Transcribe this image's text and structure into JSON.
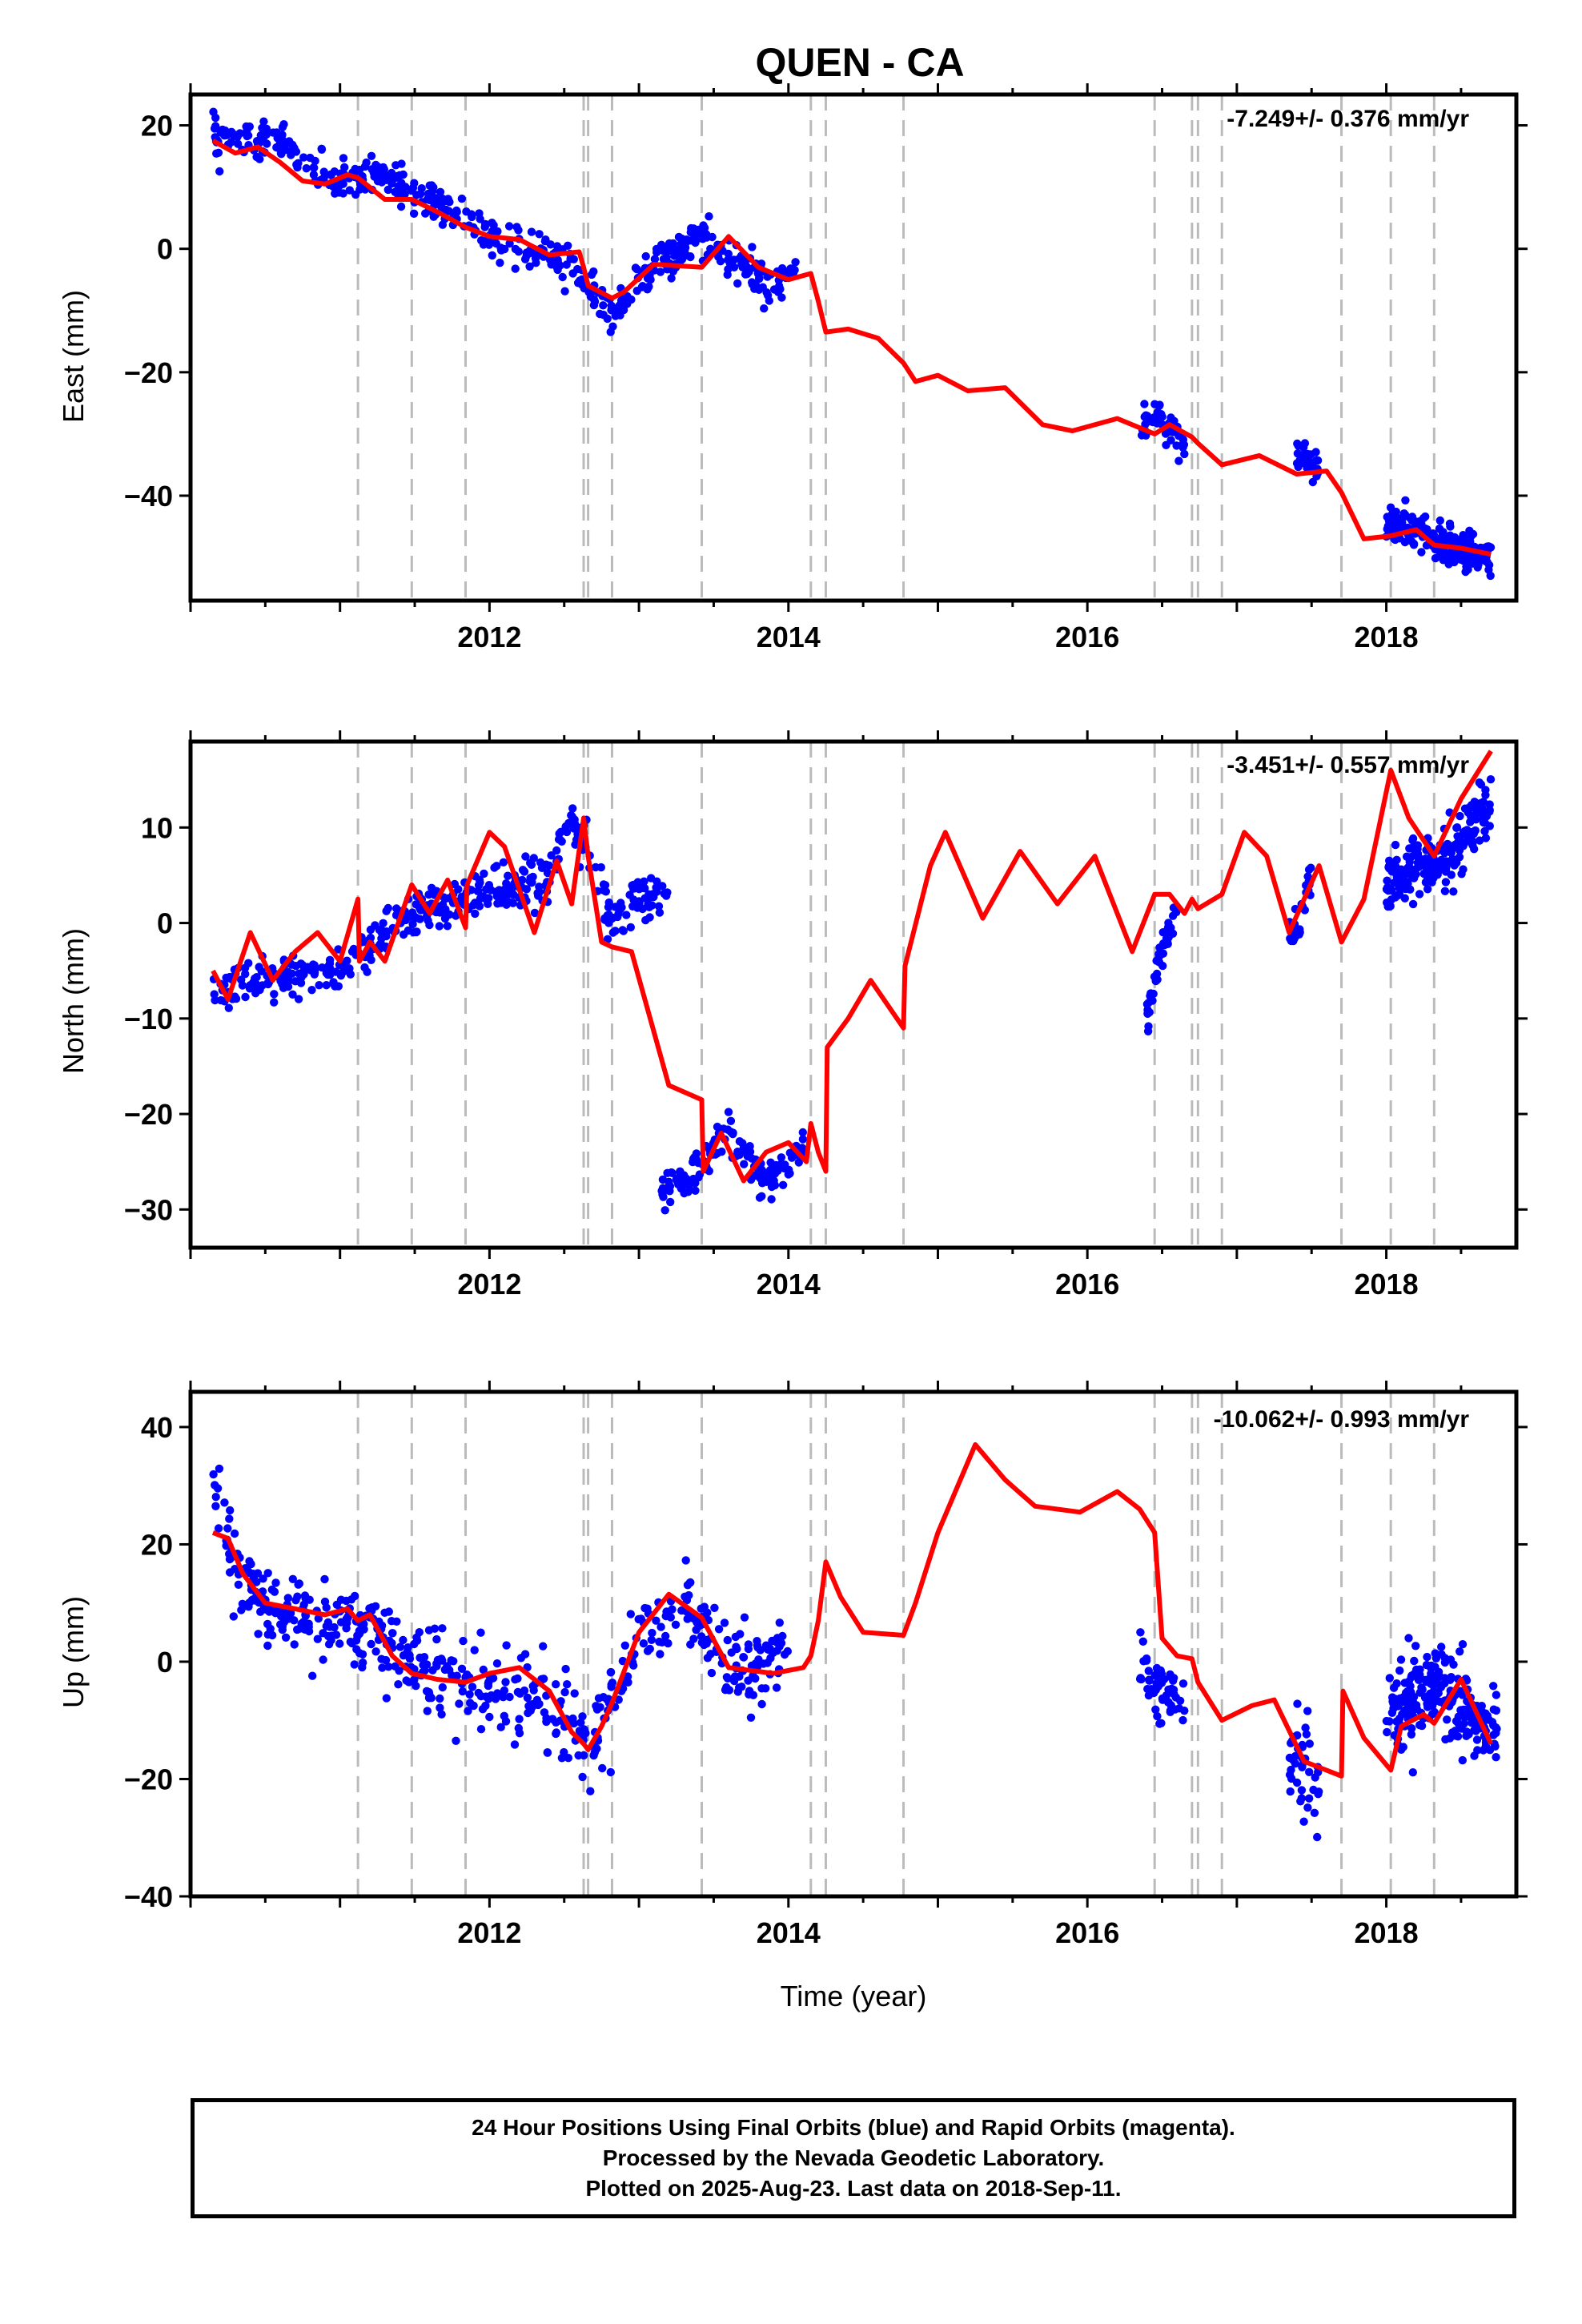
{
  "page": {
    "title": "QUEN - CA"
  },
  "footer": {
    "lines": [
      "24 Hour Positions Using Final Orbits (blue) and Rapid Orbits (magenta).",
      "Processed by the Nevada Geodetic Laboratory.",
      "Plotted on 2025-Aug-23. Last data on 2018-Sep-11."
    ]
  },
  "colors": {
    "data": "#0000ff",
    "model": "#ff0000",
    "events": "#bbbbbb",
    "frame": "#000000"
  },
  "chart_data": [
    {
      "type": "scatter",
      "title": "QUEN - CA",
      "xlabel": "",
      "ylabel": "East (mm)",
      "rate": "-7.249+/- 0.376 mm/yr",
      "xlim": [
        2010.0,
        2018.87
      ],
      "ylim": [
        -57,
        25
      ],
      "xticks": [
        2012,
        2014,
        2016,
        2018
      ],
      "yticks": [
        20,
        0,
        -20,
        -40
      ],
      "ytick_labels": [
        "20",
        "0",
        "−20",
        "−40"
      ],
      "event_lines": [
        2011.12,
        2011.48,
        2011.84,
        2012.63,
        2012.66,
        2012.82,
        2013.42,
        2014.15,
        2014.25,
        2014.77,
        2016.45,
        2016.7,
        2016.74,
        2016.9,
        2017.7,
        2018.03,
        2018.32
      ],
      "data_segments": [
        {
          "x": [
            2010.15,
            2010.6,
            2011.0,
            2011.3,
            2011.6,
            2012.0,
            2012.4,
            2012.62,
            2012.82,
            2013.1,
            2013.4,
            2013.6,
            2013.85,
            2014.05
          ],
          "y": [
            18,
            17,
            10.5,
            12,
            8,
            2,
            -1,
            -4,
            -11,
            -3,
            2,
            -1,
            -6,
            -3
          ],
          "spread": 2.8,
          "n": 520
        },
        {
          "x": [
            2016.35,
            2016.5,
            2016.65
          ],
          "y": [
            -30,
            -27,
            -32
          ],
          "spread": 2.5,
          "n": 50
        },
        {
          "x": [
            2017.4,
            2017.55
          ],
          "y": [
            -33,
            -36
          ],
          "spread": 2.0,
          "n": 35
        },
        {
          "x": [
            2018.0,
            2018.2,
            2018.4,
            2018.7
          ],
          "y": [
            -44,
            -46,
            -48,
            -50
          ],
          "spread": 2.6,
          "n": 220
        }
      ],
      "model": {
        "x": [
          2010.15,
          2010.3,
          2010.45,
          2010.6,
          2010.75,
          2010.9,
          2011.05,
          2011.12,
          2011.3,
          2011.48,
          2011.65,
          2011.84,
          2012.0,
          2012.2,
          2012.4,
          2012.6,
          2012.63,
          2012.66,
          2012.82,
          2012.9,
          2013.1,
          2013.42,
          2013.6,
          2013.8,
          2014.0,
          2014.15,
          2014.2,
          2014.25,
          2014.4,
          2014.6,
          2014.77,
          2014.85,
          2015.0,
          2015.2,
          2015.45,
          2015.7,
          2015.9,
          2016.2,
          2016.45,
          2016.55,
          2016.7,
          2016.74,
          2016.9,
          2017.15,
          2017.4,
          2017.6,
          2017.7,
          2017.85,
          2018.03,
          2018.2,
          2018.32,
          2018.5,
          2018.7
        ],
        "y": [
          17.5,
          15.5,
          16.5,
          14,
          11,
          10.5,
          12,
          11.5,
          8,
          8,
          6,
          3.5,
          2,
          1.5,
          -1,
          -0.5,
          -3,
          -6,
          -8,
          -7,
          -2.5,
          -3,
          2,
          -3,
          -5,
          -4,
          -8.5,
          -13.5,
          -13,
          -14.5,
          -18.5,
          -21.5,
          -20.5,
          -23,
          -22.5,
          -28.5,
          -29.5,
          -27.5,
          -30,
          -28.5,
          -30.5,
          -31.5,
          -35,
          -33.5,
          -36.5,
          -36,
          -39.5,
          -47,
          -46.5,
          -45.5,
          -48,
          -48.5,
          -49.5
        ]
      }
    },
    {
      "type": "scatter",
      "title": "",
      "xlabel": "",
      "ylabel": "North (mm)",
      "rate": "-3.451+/- 0.557 mm/yr",
      "xlim": [
        2010.0,
        2018.87
      ],
      "ylim": [
        -34,
        19
      ],
      "xticks": [
        2012,
        2014,
        2016,
        2018
      ],
      "yticks": [
        10,
        0,
        -10,
        -20,
        -30
      ],
      "ytick_labels": [
        "10",
        "0",
        "−10",
        "−20",
        "−30"
      ],
      "event_lines": [
        2011.12,
        2011.48,
        2011.84,
        2012.63,
        2012.66,
        2012.82,
        2013.42,
        2014.15,
        2014.25,
        2014.77,
        2016.45,
        2016.7,
        2016.74,
        2016.9,
        2017.7,
        2018.03,
        2018.32
      ],
      "data_segments": [
        {
          "x": [
            2010.15,
            2010.5,
            2011.0,
            2011.5,
            2012.0,
            2012.4,
            2012.55,
            2012.66,
            2012.82,
            2013.0,
            2013.2
          ],
          "y": [
            -7,
            -6,
            -5,
            1,
            3,
            5,
            10,
            8,
            0,
            3,
            3
          ],
          "spread": 2.2,
          "n": 430
        },
        {
          "x": [
            2013.15,
            2013.4,
            2013.6,
            2013.85,
            2014.1
          ],
          "y": [
            -28,
            -26,
            -22,
            -27,
            -24
          ],
          "spread": 1.8,
          "n": 150
        },
        {
          "x": [
            2016.4,
            2016.5,
            2016.6
          ],
          "y": [
            -9,
            -3,
            2
          ],
          "spread": 1.5,
          "n": 45
        },
        {
          "x": [
            2017.35,
            2017.5
          ],
          "y": [
            -2,
            5
          ],
          "spread": 2.0,
          "n": 30
        },
        {
          "x": [
            2018.0,
            2018.2,
            2018.4,
            2018.7
          ],
          "y": [
            4,
            6,
            7,
            12
          ],
          "spread": 2.8,
          "n": 220
        }
      ],
      "model": {
        "x": [
          2010.15,
          2010.25,
          2010.4,
          2010.55,
          2010.7,
          2010.85,
          2011.0,
          2011.12,
          2011.13,
          2011.2,
          2011.3,
          2011.48,
          2011.6,
          2011.72,
          2011.84,
          2011.85,
          2012.0,
          2012.1,
          2012.3,
          2012.45,
          2012.55,
          2012.63,
          2012.66,
          2012.75,
          2012.82,
          2012.95,
          2013.2,
          2013.42,
          2013.43,
          2013.55,
          2013.7,
          2013.85,
          2014.0,
          2014.12,
          2014.15,
          2014.2,
          2014.25,
          2014.26,
          2014.4,
          2014.55,
          2014.77,
          2014.78,
          2014.95,
          2015.05,
          2015.3,
          2015.55,
          2015.8,
          2016.05,
          2016.3,
          2016.45,
          2016.55,
          2016.65,
          2016.7,
          2016.74,
          2016.9,
          2017.05,
          2017.2,
          2017.35,
          2017.55,
          2017.7,
          2017.85,
          2018.03,
          2018.15,
          2018.32,
          2018.5,
          2018.7
        ],
        "y": [
          -5,
          -8,
          -1,
          -6,
          -3,
          -1,
          -4,
          2.5,
          -4,
          -2,
          -4,
          4,
          1,
          4.5,
          -0.5,
          4,
          9.5,
          8,
          -1,
          6.5,
          2,
          11,
          7,
          -2,
          -2.5,
          -3,
          -17,
          -18.5,
          -26,
          -22,
          -27,
          -24,
          -23,
          -25,
          -21,
          -24,
          -26,
          -13,
          -10,
          -6,
          -11,
          -4.5,
          6,
          9.5,
          0.5,
          7.5,
          2,
          7,
          -3,
          3,
          3,
          1,
          2.5,
          1.5,
          3,
          9.5,
          7,
          -1,
          6,
          -2,
          2.5,
          16,
          11,
          7,
          13,
          18
        ]
      }
    },
    {
      "type": "scatter",
      "title": "",
      "xlabel": "Time (year)",
      "ylabel": "Up (mm)",
      "rate": "-10.062+/- 0.993 mm/yr",
      "xlim": [
        2010.0,
        2018.87
      ],
      "ylim": [
        -40,
        46
      ],
      "xticks": [
        2012,
        2014,
        2016,
        2018
      ],
      "yticks": [
        40,
        20,
        0,
        -20,
        -40
      ],
      "ytick_labels": [
        "40",
        "20",
        "0",
        "−20",
        "−40"
      ],
      "event_lines": [
        2011.12,
        2011.48,
        2011.84,
        2012.63,
        2012.66,
        2012.82,
        2013.42,
        2014.15,
        2014.25,
        2014.77,
        2016.45,
        2016.7,
        2016.74,
        2016.9,
        2017.7,
        2018.03,
        2018.32
      ],
      "data_segments": [
        {
          "x": [
            2010.15,
            2010.3,
            2010.6,
            2011.0,
            2011.5,
            2012.0,
            2012.5,
            2012.7,
            2013.0,
            2013.3,
            2013.6,
            2014.0
          ],
          "y": [
            33,
            15,
            8,
            6,
            0,
            -5,
            -10,
            -14,
            5,
            10,
            -2,
            0
          ],
          "spread": 6.5,
          "n": 560
        },
        {
          "x": [
            2016.35,
            2016.45,
            2016.65
          ],
          "y": [
            3,
            -4,
            -8
          ],
          "spread": 5.5,
          "n": 60
        },
        {
          "x": [
            2017.35,
            2017.55
          ],
          "y": [
            -15,
            -20
          ],
          "spread": 7.0,
          "n": 40
        },
        {
          "x": [
            2018.0,
            2018.3,
            2018.6,
            2018.75
          ],
          "y": [
            -10,
            -3,
            -10,
            -10
          ],
          "spread": 7.0,
          "n": 230
        }
      ],
      "model": {
        "x": [
          2010.15,
          2010.25,
          2010.35,
          2010.5,
          2010.7,
          2010.9,
          2011.05,
          2011.12,
          2011.2,
          2011.35,
          2011.48,
          2011.65,
          2011.84,
          2012.0,
          2012.2,
          2012.4,
          2012.55,
          2012.63,
          2012.66,
          2012.75,
          2012.82,
          2013.0,
          2013.2,
          2013.42,
          2013.6,
          2013.9,
          2014.1,
          2014.15,
          2014.2,
          2014.25,
          2014.35,
          2014.5,
          2014.77,
          2014.85,
          2015.0,
          2015.25,
          2015.45,
          2015.65,
          2015.95,
          2016.2,
          2016.35,
          2016.45,
          2016.5,
          2016.6,
          2016.7,
          2016.74,
          2016.9,
          2017.1,
          2017.25,
          2017.45,
          2017.7,
          2017.71,
          2017.85,
          2018.03,
          2018.1,
          2018.25,
          2018.32,
          2018.5,
          2018.7
        ],
        "y": [
          22,
          21,
          15,
          10,
          9,
          8,
          9,
          7,
          8,
          1,
          -2,
          -3,
          -3.5,
          -2,
          -1,
          -5,
          -12,
          -14,
          -15,
          -11,
          -7,
          5,
          11.5,
          7.5,
          -1,
          -2,
          -1,
          1,
          7,
          17,
          11,
          5,
          4.5,
          10,
          22,
          37,
          31,
          26.5,
          25.5,
          29,
          26,
          22,
          4,
          1,
          0.5,
          -3.5,
          -10,
          -7.5,
          -6.5,
          -17,
          -19.5,
          -5,
          -13,
          -18.5,
          -11,
          -9,
          -10.5,
          -3,
          -14
        ]
      }
    }
  ]
}
